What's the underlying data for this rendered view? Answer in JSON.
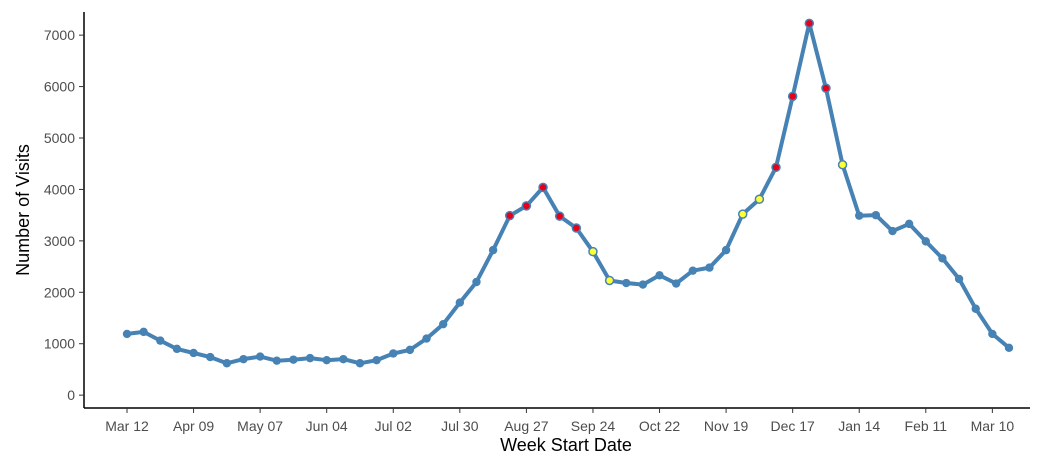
{
  "chart_data": {
    "type": "line",
    "title": "",
    "xlabel": "Week Start Date",
    "ylabel": "Number of Visits",
    "ylim": [
      -250,
      7450
    ],
    "yticks": [
      0,
      1000,
      2000,
      3000,
      4000,
      5000,
      6000,
      7000
    ],
    "x_tick_labels": [
      "Mar 12",
      "Apr 09",
      "May 07",
      "Jun 04",
      "Jul 02",
      "Jul 30",
      "Aug 27",
      "Sep 24",
      "Oct 22",
      "Nov 19",
      "Dec 17",
      "Jan 14",
      "Feb 11",
      "Mar 10"
    ],
    "x_tick_positions": [
      0,
      4,
      8,
      12,
      16,
      20,
      24,
      28,
      32,
      36,
      40,
      44,
      48,
      52
    ],
    "grid": false,
    "legend": "none",
    "colors": {
      "line": "#4682B4",
      "normal_point": "#4682B4",
      "red_point": "#E8001A",
      "yellow_point": "#FFFF33"
    },
    "series": [
      {
        "values": [
          1190,
          1230,
          1060,
          900,
          820,
          740,
          620,
          700,
          750,
          670,
          690,
          720,
          680,
          700,
          620,
          680,
          810,
          880,
          1100,
          1380,
          1800,
          2200,
          2820,
          3490,
          3680,
          4040,
          3480,
          3250,
          2790,
          2230,
          2180,
          2150,
          2330,
          2170,
          2420,
          2480,
          2820,
          3520,
          3810,
          4430,
          5810,
          7230,
          5970,
          4480,
          3490,
          3500,
          3190,
          3330,
          2990,
          2660,
          2260,
          1680,
          1190,
          920
        ],
        "highlight": [
          "n",
          "n",
          "n",
          "n",
          "n",
          "n",
          "n",
          "n",
          "n",
          "n",
          "n",
          "n",
          "n",
          "n",
          "n",
          "n",
          "n",
          "n",
          "n",
          "n",
          "n",
          "n",
          "n",
          "r",
          "r",
          "r",
          "r",
          "r",
          "y",
          "y",
          "n",
          "n",
          "n",
          "n",
          "n",
          "n",
          "n",
          "y",
          "y",
          "r",
          "r",
          "r",
          "r",
          "y",
          "n",
          "n",
          "n",
          "n",
          "n",
          "n",
          "n",
          "n",
          "n",
          "n"
        ]
      }
    ]
  }
}
